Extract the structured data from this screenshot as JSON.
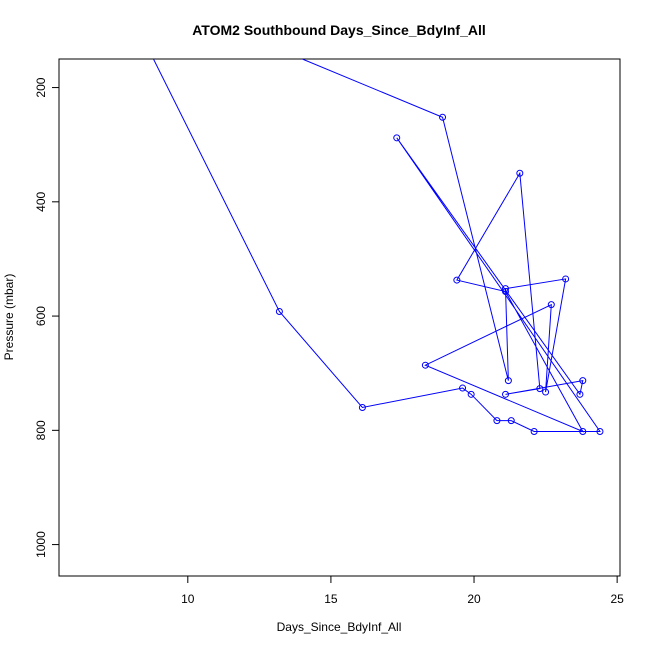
{
  "chart_data": {
    "type": "line",
    "title": "ATOM2 Southbound Days_Since_BdyInf_All",
    "xlabel": "Days_Since_BdyInf_All",
    "ylabel": "Pressure (mbar)",
    "xlim": [
      5.5,
      25.1
    ],
    "ylim": [
      1055,
      150
    ],
    "y_reversed": true,
    "x_ticks": [
      10,
      15,
      20,
      25
    ],
    "y_ticks": [
      200,
      400,
      600,
      800,
      1000
    ],
    "grid": false,
    "legend": "none",
    "color": "#0000ff",
    "marker": "open-circle",
    "series": [
      {
        "x": [
          8.8,
          13.2,
          16.1,
          19.6,
          19.9,
          20.8,
          21.3,
          22.1,
          24.4,
          17.3,
          23.7,
          23.8,
          21.1,
          22.3,
          21.6,
          19.4,
          21.1,
          23.8,
          18.3,
          22.7,
          22.5,
          23.2,
          21.1,
          21.2,
          18.9,
          14.0
        ],
        "y": [
          150,
          592,
          760,
          726,
          737,
          783,
          783,
          802,
          802,
          288,
          737,
          713,
          737,
          727,
          350,
          537,
          557,
          802,
          686,
          580,
          733,
          535,
          552,
          713,
          252,
          150
        ]
      }
    ]
  }
}
